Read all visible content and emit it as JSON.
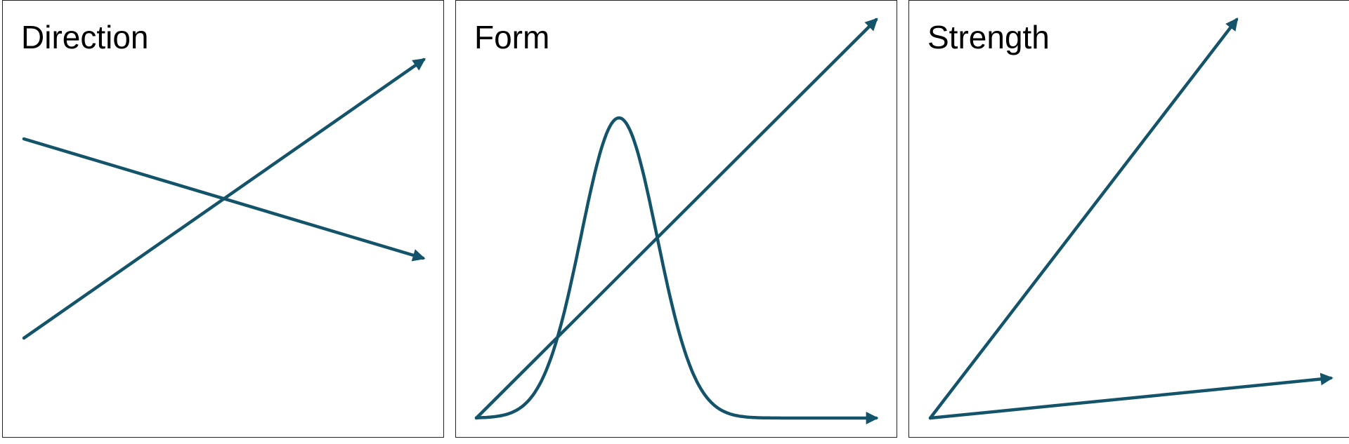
{
  "accent_color": "#13546B",
  "panels": [
    {
      "id": "direction",
      "title": "Direction"
    },
    {
      "id": "form",
      "title": "Form"
    },
    {
      "id": "strength",
      "title": "Strength"
    }
  ]
}
